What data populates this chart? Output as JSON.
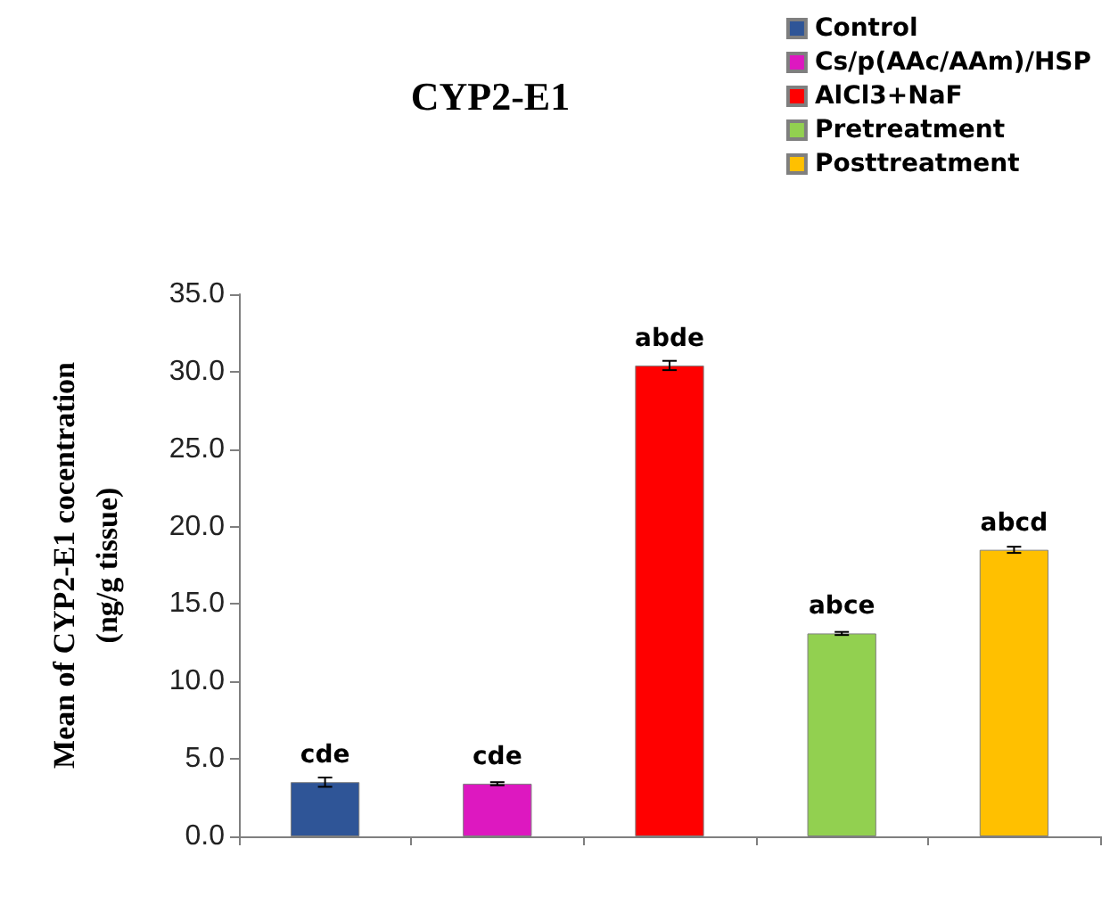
{
  "chart_data": {
    "type": "bar",
    "title": "CYP2-E1",
    "ylabel": "Mean of CYP2-E1 cocentration\n(ng/g tissue)",
    "categories": [
      null,
      null,
      null,
      null,
      null
    ],
    "series": [
      {
        "name": "Control",
        "color": "#2f5597",
        "values": [
          3.5,
          null,
          null,
          null,
          null
        ],
        "errors": [
          0.3,
          null,
          null,
          null,
          null
        ],
        "value_labels": [
          "cde",
          null,
          null,
          null,
          null
        ]
      },
      {
        "name": "Cs/p(AAc/AAm)/HSP",
        "color": "#dd18c0",
        "values": [
          null,
          3.4,
          null,
          null,
          null
        ],
        "errors": [
          null,
          0.1,
          null,
          null,
          null
        ],
        "value_labels": [
          null,
          "cde",
          null,
          null,
          null
        ]
      },
      {
        "name": "AlCl3+NaF",
        "color": "#ff0000",
        "values": [
          null,
          null,
          30.4,
          null,
          null
        ],
        "errors": [
          null,
          null,
          0.3,
          null,
          null
        ],
        "value_labels": [
          null,
          null,
          "abde",
          null,
          null
        ]
      },
      {
        "name": "Pretreatment",
        "color": "#92d050",
        "values": [
          null,
          null,
          null,
          13.1,
          null
        ],
        "errors": [
          null,
          null,
          null,
          0.1,
          null
        ],
        "value_labels": [
          null,
          null,
          null,
          "abce",
          null
        ]
      },
      {
        "name": "Posttreatment",
        "color": "#ffc000",
        "values": [
          null,
          null,
          null,
          null,
          18.5
        ],
        "errors": [
          null,
          null,
          null,
          null,
          0.2
        ],
        "value_labels": [
          null,
          null,
          null,
          null,
          "abcd"
        ]
      }
    ],
    "ylim": [
      0,
      35
    ],
    "yticks": [
      {
        "value": 0,
        "label": "0.0"
      },
      {
        "value": 5,
        "label": "5.0"
      },
      {
        "value": 10,
        "label": "10.0"
      },
      {
        "value": 15,
        "label": "15.0"
      },
      {
        "value": 20,
        "label": "20.0"
      },
      {
        "value": 25,
        "label": "25.0"
      },
      {
        "value": 30,
        "label": "30.0"
      },
      {
        "value": 35,
        "label": "35.0"
      }
    ],
    "grid": false,
    "legend": "top right"
  }
}
